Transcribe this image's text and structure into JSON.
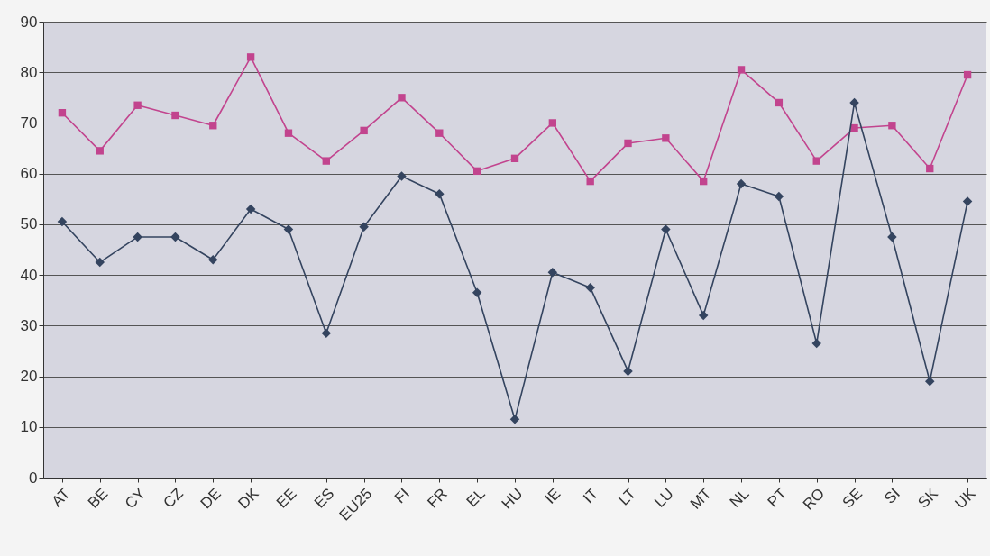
{
  "chart_data": {
    "type": "line",
    "categories": [
      "AT",
      "BE",
      "CY",
      "CZ",
      "DE",
      "DK",
      "EE",
      "ES",
      "EU25",
      "FI",
      "FR",
      "EL",
      "HU",
      "IE",
      "IT",
      "LT",
      "LU",
      "MT",
      "NL",
      "PT",
      "RO",
      "SE",
      "SI",
      "SK",
      "UK"
    ],
    "series": [
      {
        "color": "#c2448e",
        "marker": "square",
        "values": [
          72,
          64.5,
          73.5,
          71.5,
          69.5,
          83,
          68,
          62.5,
          68.5,
          75,
          68,
          60.5,
          63,
          70,
          58.5,
          66,
          67,
          58.5,
          80.5,
          74,
          62.5,
          69,
          69.5,
          61,
          79.5
        ]
      },
      {
        "color": "#34445f",
        "marker": "diamond",
        "values": [
          50.5,
          42.5,
          47.5,
          47.5,
          43,
          53,
          49,
          28.5,
          49.5,
          59.5,
          56,
          36.5,
          11.5,
          40.5,
          37.5,
          21,
          49,
          32,
          58,
          55.5,
          26.5,
          74,
          47.5,
          19,
          54.5
        ]
      }
    ],
    "ylim": [
      0,
      90
    ],
    "yticks": [
      0,
      10,
      20,
      30,
      40,
      50,
      60,
      70,
      80,
      90
    ],
    "grid": "y",
    "line_style": "solid"
  }
}
